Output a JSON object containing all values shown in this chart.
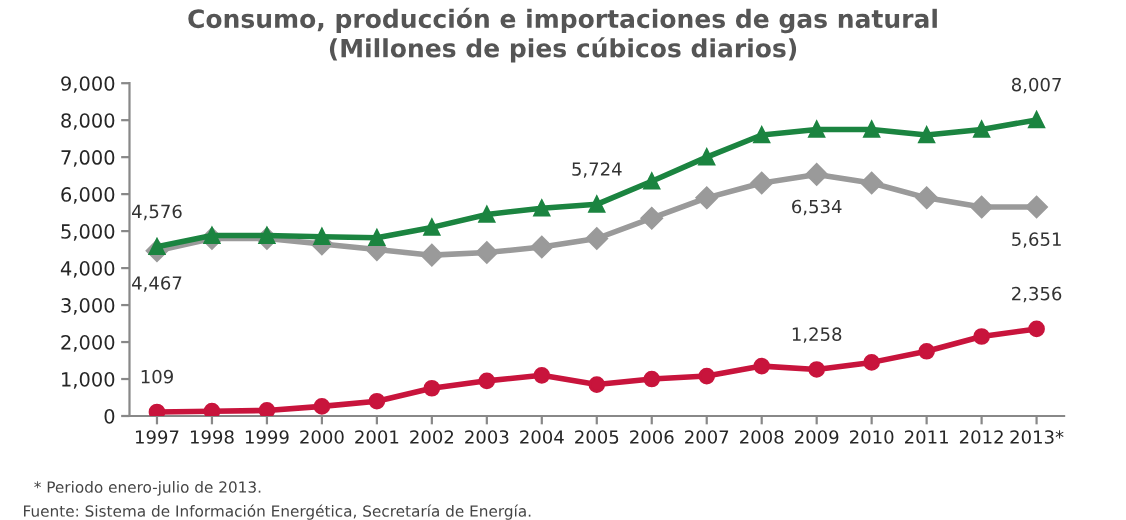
{
  "chart_data": {
    "type": "line",
    "title": "Consumo, producción e importaciones de gas natural\n(Millones de pies cúbicos diarios)",
    "categories": [
      "1997",
      "1998",
      "1999",
      "2000",
      "2001",
      "2002",
      "2003",
      "2004",
      "2005",
      "2006",
      "2007",
      "2008",
      "2009",
      "2010",
      "2011",
      "2012",
      "2013*"
    ],
    "series": [
      {
        "color": "#1b8440",
        "marker": "triangle",
        "values": [
          4576,
          4880,
          4880,
          4850,
          4820,
          5100,
          5450,
          5620,
          5724,
          6350,
          7000,
          7600,
          7750,
          7750,
          7600,
          7750,
          8007
        ],
        "value_labels": [
          "4,576",
          null,
          null,
          null,
          null,
          null,
          null,
          null,
          "5,724",
          null,
          null,
          null,
          null,
          null,
          null,
          null,
          "8,007"
        ]
      },
      {
        "color": "#9a9a9a",
        "marker": "diamond",
        "values": [
          4467,
          4800,
          4800,
          4650,
          4500,
          4350,
          4420,
          4570,
          4800,
          5350,
          5900,
          6300,
          6534,
          6300,
          5900,
          5650,
          5651
        ],
        "value_labels": [
          "4,467",
          null,
          null,
          null,
          null,
          null,
          null,
          null,
          null,
          null,
          null,
          null,
          "6,534",
          null,
          null,
          null,
          "5,651"
        ]
      },
      {
        "color": "#c8143c",
        "marker": "circle",
        "values": [
          109,
          130,
          150,
          260,
          400,
          750,
          950,
          1100,
          850,
          1000,
          1080,
          1350,
          1258,
          1450,
          1750,
          2150,
          2356
        ],
        "value_labels": [
          "109",
          null,
          null,
          null,
          null,
          null,
          null,
          null,
          null,
          null,
          null,
          null,
          "1,258",
          null,
          null,
          null,
          "2,356"
        ]
      }
    ],
    "ylim": [
      0,
      9000
    ],
    "yticks": [
      {
        "value": 0,
        "label": "0"
      },
      {
        "value": 1000,
        "label": "1,000"
      },
      {
        "value": 2000,
        "label": "2,000"
      },
      {
        "value": 3000,
        "label": "3,000"
      },
      {
        "value": 4000,
        "label": "4,000"
      },
      {
        "value": 5000,
        "label": "5,000"
      },
      {
        "value": 6000,
        "label": "6,000"
      },
      {
        "value": 7000,
        "label": "7,000"
      },
      {
        "value": 8000,
        "label": "8,000"
      },
      {
        "value": 9000,
        "label": "9,000"
      }
    ],
    "grid": false,
    "legend": false,
    "annotations": [
      "* Periodo enero-julio de 2013.",
      "Fuente: Sistema de Información Energética, Secretaría de Energía."
    ]
  }
}
